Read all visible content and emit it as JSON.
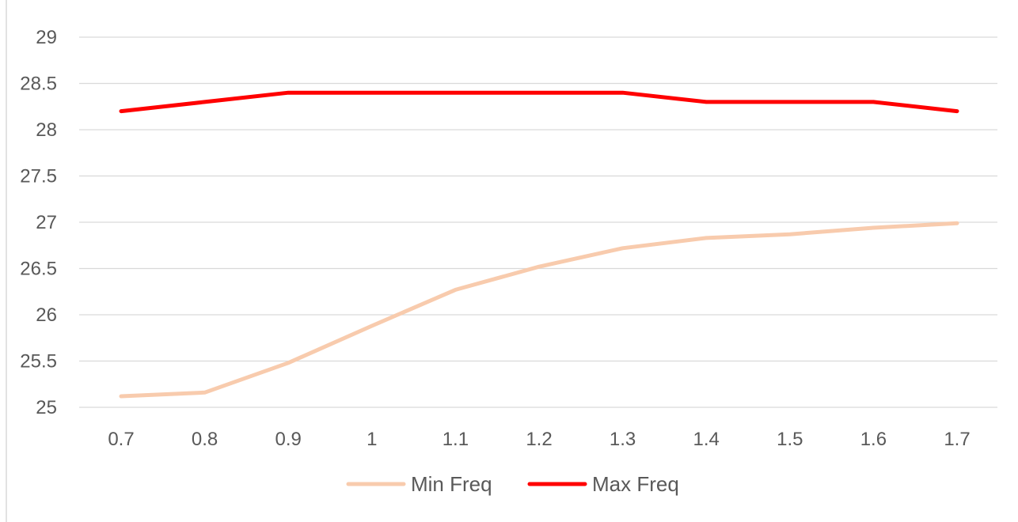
{
  "chart_data": {
    "type": "line",
    "title": "",
    "xlabel": "",
    "ylabel": "",
    "x": [
      "0.7",
      "0.8",
      "0.9",
      "1",
      "1.1",
      "1.2",
      "1.3",
      "1.4",
      "1.5",
      "1.6",
      "1.7"
    ],
    "ylim": [
      25,
      29
    ],
    "yticks": [
      "25",
      "25.5",
      "26",
      "26.5",
      "27",
      "27.5",
      "28",
      "28.5",
      "29"
    ],
    "grid": true,
    "legend_position": "bottom",
    "series": [
      {
        "name": "Min Freq",
        "color": "#f8cbad",
        "values": [
          25.12,
          25.16,
          25.48,
          25.88,
          26.27,
          26.52,
          26.72,
          26.83,
          26.87,
          26.94,
          26.99
        ]
      },
      {
        "name": "Max Freq",
        "color": "#ff0000",
        "values": [
          28.2,
          28.3,
          28.4,
          28.4,
          28.4,
          28.4,
          28.4,
          28.3,
          28.3,
          28.3,
          28.2
        ]
      }
    ]
  }
}
